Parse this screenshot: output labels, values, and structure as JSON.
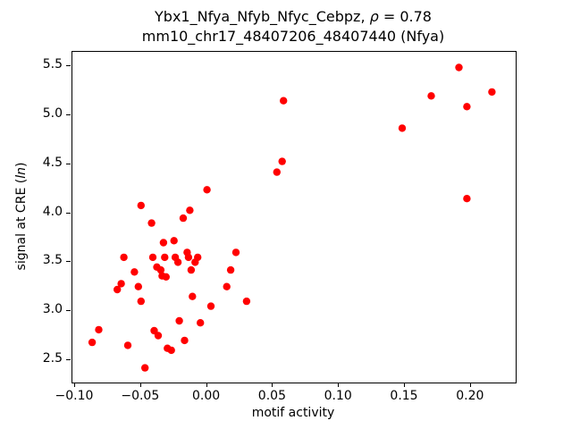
{
  "chart_data": {
    "type": "scatter",
    "title_parts": {
      "line1_prefix": "Ybx1_Nfya_Nfyb_Nfyc_Cebpz, ",
      "rho": "ρ",
      "line1_suffix": " = 0.78",
      "line2": "mm10_chr17_48407206_48407440 (Nfya)"
    },
    "title": "Ybx1_Nfya_Nfyb_Nfyc_Cebpz, ρ = 0.78",
    "subtitle": "mm10_chr17_48407206_48407440 (Nfya)",
    "xlabel": "motif activity",
    "ylabel_parts": {
      "prefix": "signal at CRE (",
      "italic": "ln",
      "suffix": ")"
    },
    "xlim": [
      -0.102,
      0.234
    ],
    "ylim": [
      2.27,
      5.65
    ],
    "xticks": [
      -0.1,
      -0.05,
      0.0,
      0.05,
      0.1,
      0.15,
      0.2
    ],
    "xtick_labels": [
      "−0.10",
      "−0.05",
      "0.00",
      "0.05",
      "0.10",
      "0.15",
      "0.20"
    ],
    "yticks": [
      2.5,
      3.0,
      3.5,
      4.0,
      4.5,
      5.0,
      5.5
    ],
    "ytick_labels": [
      "2.5",
      "3.0",
      "3.5",
      "4.0",
      "4.5",
      "5.0",
      "5.5"
    ],
    "grid": false,
    "legend": "none",
    "marker_color": "#ff0000",
    "marker_radius": 4.2,
    "points": [
      [
        -0.087,
        2.68
      ],
      [
        -0.082,
        2.81
      ],
      [
        -0.068,
        3.22
      ],
      [
        -0.065,
        3.28
      ],
      [
        -0.063,
        3.55
      ],
      [
        -0.06,
        2.65
      ],
      [
        -0.055,
        3.4
      ],
      [
        -0.052,
        3.25
      ],
      [
        -0.05,
        4.08
      ],
      [
        -0.05,
        3.1
      ],
      [
        -0.047,
        2.42
      ],
      [
        -0.042,
        3.9
      ],
      [
        -0.041,
        3.55
      ],
      [
        -0.04,
        2.8
      ],
      [
        -0.038,
        3.45
      ],
      [
        -0.037,
        2.75
      ],
      [
        -0.035,
        3.42
      ],
      [
        -0.034,
        3.36
      ],
      [
        -0.033,
        3.7
      ],
      [
        -0.032,
        3.55
      ],
      [
        -0.031,
        3.35
      ],
      [
        -0.03,
        2.62
      ],
      [
        -0.027,
        2.6
      ],
      [
        -0.025,
        3.72
      ],
      [
        -0.024,
        3.55
      ],
      [
        -0.022,
        3.5
      ],
      [
        -0.021,
        2.9
      ],
      [
        -0.018,
        3.95
      ],
      [
        -0.017,
        2.7
      ],
      [
        -0.015,
        3.6
      ],
      [
        -0.014,
        3.55
      ],
      [
        -0.013,
        4.03
      ],
      [
        -0.012,
        3.42
      ],
      [
        -0.011,
        3.15
      ],
      [
        -0.009,
        3.5
      ],
      [
        -0.007,
        3.55
      ],
      [
        -0.005,
        2.88
      ],
      [
        0.0,
        4.24
      ],
      [
        0.003,
        3.05
      ],
      [
        0.015,
        3.25
      ],
      [
        0.018,
        3.42
      ],
      [
        0.022,
        3.6
      ],
      [
        0.03,
        3.1
      ],
      [
        0.053,
        4.42
      ],
      [
        0.057,
        4.53
      ],
      [
        0.058,
        5.15
      ],
      [
        0.148,
        4.87
      ],
      [
        0.17,
        5.2
      ],
      [
        0.191,
        5.49
      ],
      [
        0.197,
        5.09
      ],
      [
        0.197,
        4.15
      ],
      [
        0.216,
        5.24
      ]
    ]
  }
}
